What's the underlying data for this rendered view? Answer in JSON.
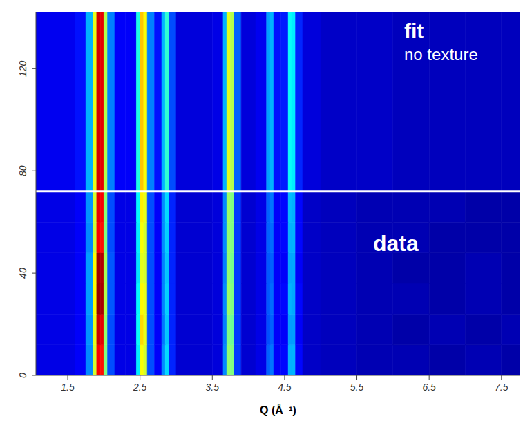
{
  "chart_data": {
    "type": "heatmap",
    "x_label": "Q (Å⁻¹)",
    "annotations": [
      {
        "text": "fit",
        "bold": true
      },
      {
        "text": "no texture",
        "bold": false
      },
      {
        "text": "data",
        "bold": true
      }
    ],
    "xlim": [
      1.06,
      7.76
    ],
    "xticks": [
      1.5,
      2.5,
      3.5,
      4.5,
      5.5,
      6.5,
      7.5
    ],
    "ylim": [
      0,
      142
    ],
    "yticks": [
      0,
      40,
      80,
      120
    ],
    "divider": 72,
    "q_edges": [
      1.06,
      1.6,
      1.75,
      1.85,
      1.9,
      1.95,
      2.0,
      2.05,
      2.15,
      2.3,
      2.45,
      2.5,
      2.55,
      2.6,
      2.7,
      2.8,
      2.85,
      2.9,
      3.0,
      3.5,
      3.65,
      3.7,
      3.75,
      3.8,
      3.9,
      4.1,
      4.25,
      4.3,
      4.35,
      4.45,
      4.55,
      4.6,
      4.65,
      4.75,
      5.0,
      5.5,
      6.0,
      6.5,
      7.0,
      7.5,
      7.76
    ],
    "y_edges": [
      0,
      12,
      24,
      36,
      48,
      60,
      72,
      142
    ],
    "cells": [
      [
        0.1,
        0.12,
        0.26,
        0.58,
        0.88,
        0.86,
        0.5,
        0.2,
        0.1,
        0.1,
        0.36,
        0.62,
        0.58,
        0.2,
        0.12,
        0.26,
        0.34,
        0.16,
        0.08,
        0.09,
        0.26,
        0.52,
        0.5,
        0.18,
        0.08,
        0.1,
        0.22,
        0.24,
        0.12,
        0.13,
        0.3,
        0.3,
        0.13,
        0.07,
        0.06,
        0.05,
        0.05,
        0.04,
        0.05,
        0.04
      ],
      [
        0.1,
        0.12,
        0.27,
        0.6,
        0.93,
        0.9,
        0.52,
        0.2,
        0.1,
        0.1,
        0.38,
        0.66,
        0.6,
        0.2,
        0.12,
        0.24,
        0.32,
        0.16,
        0.08,
        0.09,
        0.25,
        0.5,
        0.48,
        0.18,
        0.08,
        0.1,
        0.2,
        0.22,
        0.12,
        0.12,
        0.28,
        0.28,
        0.12,
        0.07,
        0.06,
        0.05,
        0.04,
        0.05,
        0.04,
        0.05
      ],
      [
        0.1,
        0.12,
        0.28,
        0.62,
        0.98,
        0.96,
        0.55,
        0.21,
        0.1,
        0.1,
        0.37,
        0.63,
        0.6,
        0.2,
        0.12,
        0.25,
        0.33,
        0.16,
        0.08,
        0.09,
        0.26,
        0.53,
        0.5,
        0.18,
        0.08,
        0.1,
        0.21,
        0.23,
        0.12,
        0.13,
        0.3,
        0.29,
        0.13,
        0.07,
        0.06,
        0.05,
        0.05,
        0.04,
        0.05,
        0.04
      ],
      [
        0.1,
        0.12,
        0.28,
        0.62,
        0.97,
        0.95,
        0.54,
        0.21,
        0.1,
        0.1,
        0.35,
        0.6,
        0.58,
        0.2,
        0.12,
        0.25,
        0.32,
        0.16,
        0.08,
        0.09,
        0.25,
        0.52,
        0.49,
        0.18,
        0.08,
        0.1,
        0.21,
        0.22,
        0.12,
        0.12,
        0.29,
        0.29,
        0.12,
        0.07,
        0.06,
        0.05,
        0.04,
        0.04,
        0.05,
        0.04
      ],
      [
        0.1,
        0.12,
        0.26,
        0.57,
        0.88,
        0.86,
        0.5,
        0.2,
        0.1,
        0.1,
        0.36,
        0.62,
        0.58,
        0.2,
        0.12,
        0.26,
        0.33,
        0.16,
        0.08,
        0.09,
        0.26,
        0.52,
        0.5,
        0.18,
        0.08,
        0.1,
        0.22,
        0.23,
        0.12,
        0.13,
        0.3,
        0.3,
        0.13,
        0.07,
        0.06,
        0.05,
        0.05,
        0.04,
        0.04,
        0.04
      ],
      [
        0.1,
        0.12,
        0.27,
        0.58,
        0.9,
        0.88,
        0.51,
        0.2,
        0.1,
        0.1,
        0.37,
        0.64,
        0.6,
        0.2,
        0.12,
        0.26,
        0.34,
        0.16,
        0.08,
        0.09,
        0.26,
        0.53,
        0.5,
        0.18,
        0.08,
        0.1,
        0.22,
        0.24,
        0.12,
        0.13,
        0.31,
        0.3,
        0.13,
        0.07,
        0.06,
        0.05,
        0.05,
        0.05,
        0.04,
        0.04
      ],
      [
        0.11,
        0.14,
        0.3,
        0.6,
        0.92,
        0.9,
        0.55,
        0.25,
        0.12,
        0.12,
        0.4,
        0.68,
        0.62,
        0.25,
        0.14,
        0.3,
        0.42,
        0.2,
        0.09,
        0.1,
        0.3,
        0.6,
        0.55,
        0.22,
        0.09,
        0.11,
        0.28,
        0.3,
        0.14,
        0.15,
        0.38,
        0.36,
        0.16,
        0.09,
        0.07,
        0.07,
        0.06,
        0.06,
        0.06,
        0.06
      ]
    ]
  }
}
